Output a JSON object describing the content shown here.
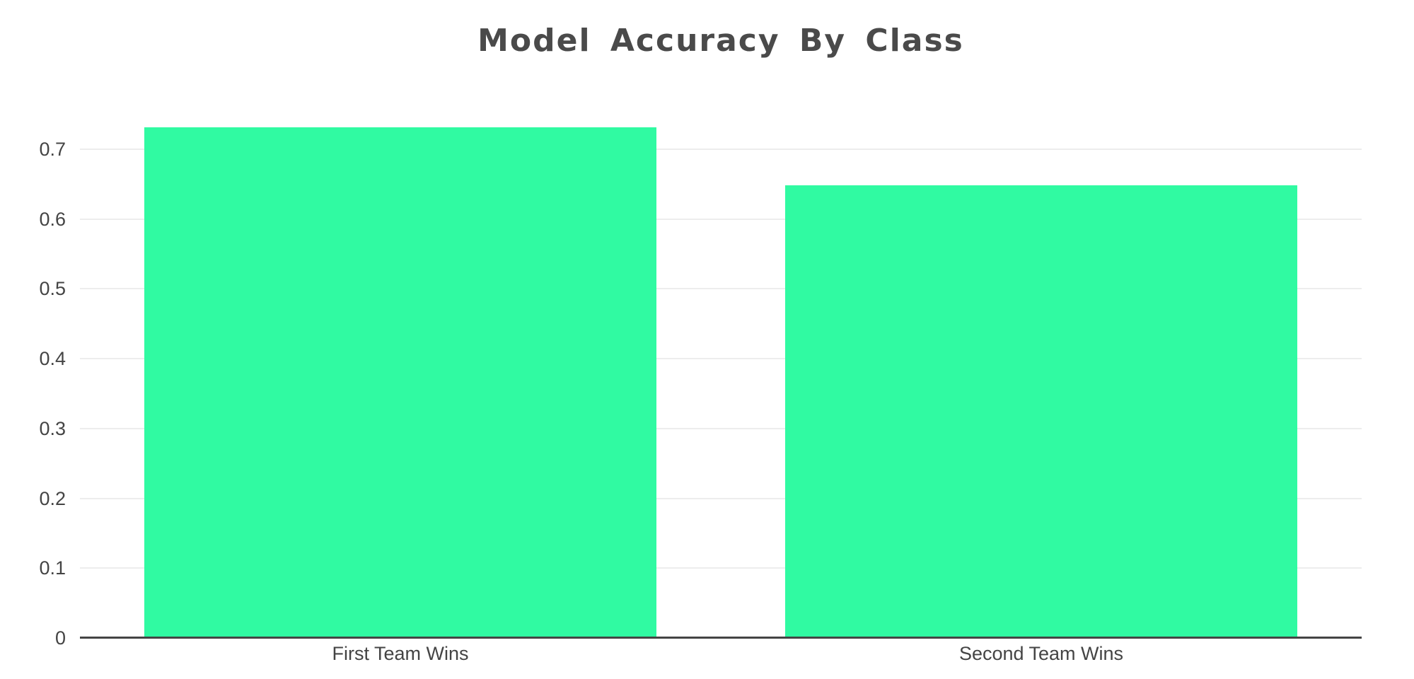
{
  "chart_data": {
    "type": "bar",
    "title": "Model Accuracy By Class",
    "categories": [
      "First Team Wins",
      "Second Team Wins"
    ],
    "values": [
      0.731,
      0.648
    ],
    "xlabel": "",
    "ylabel": "",
    "ylim": [
      0,
      0.772
    ],
    "y_ticks": [
      0,
      0.1,
      0.2,
      0.3,
      0.4,
      0.5,
      0.6,
      0.7
    ],
    "y_tick_labels": [
      "0",
      "0.1",
      "0.2",
      "0.3",
      "0.4",
      "0.5",
      "0.6",
      "0.7"
    ],
    "grid": true,
    "legend": false,
    "bar_width_fraction": 0.8
  },
  "colors": {
    "bar": "#30FAA2",
    "title_text": "#4a4a4a",
    "axis_text": "#444444",
    "gridline": "#ededed",
    "axis_line": "#444444",
    "background": "#ffffff"
  }
}
